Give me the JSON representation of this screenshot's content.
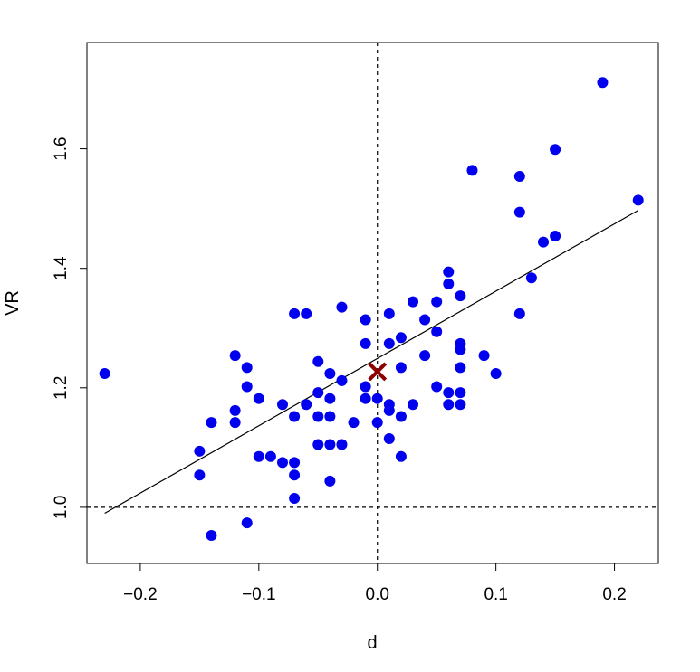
{
  "chart_data": {
    "type": "scatter",
    "title": "",
    "xlabel": "d",
    "ylabel": "VR",
    "xlim": [
      -0.245,
      0.237
    ],
    "ylim": [
      0.906,
      1.778
    ],
    "x_ticks": [
      -0.2,
      -0.1,
      0.0,
      0.1,
      0.2
    ],
    "x_tick_labels": [
      "−0.2",
      "−0.1",
      "0.0",
      "0.1",
      "0.2"
    ],
    "y_ticks": [
      1.0,
      1.2,
      1.4,
      1.6
    ],
    "y_tick_labels": [
      "1.0",
      "1.2",
      "1.4",
      "1.6"
    ],
    "grid": false,
    "point_color": "#0000ee",
    "reference_lines": {
      "vertical_dashed_x": 0.0,
      "horizontal_dashed_y": 1.0
    },
    "fit_line": {
      "from": [
        -0.23,
        0.99
      ],
      "to": [
        0.22,
        1.497
      ]
    },
    "center_marker": {
      "symbol": "x",
      "x": 0.0,
      "y": 1.227,
      "color": "#8b0000"
    },
    "points": [
      [
        -0.23,
        1.224
      ],
      [
        -0.15,
        1.094
      ],
      [
        -0.15,
        1.054
      ],
      [
        -0.14,
        1.142
      ],
      [
        -0.14,
        0.953
      ],
      [
        -0.12,
        1.254
      ],
      [
        -0.12,
        1.162
      ],
      [
        -0.12,
        1.142
      ],
      [
        -0.11,
        1.234
      ],
      [
        -0.11,
        1.202
      ],
      [
        -0.11,
        0.974
      ],
      [
        -0.1,
        1.182
      ],
      [
        -0.1,
        1.085
      ],
      [
        -0.09,
        1.085
      ],
      [
        -0.08,
        1.172
      ],
      [
        -0.08,
        1.075
      ],
      [
        -0.07,
        1.324
      ],
      [
        -0.07,
        1.152
      ],
      [
        -0.07,
        1.075
      ],
      [
        -0.07,
        1.054
      ],
      [
        -0.07,
        1.015
      ],
      [
        -0.06,
        1.324
      ],
      [
        -0.06,
        1.172
      ],
      [
        -0.05,
        1.244
      ],
      [
        -0.05,
        1.192
      ],
      [
        -0.05,
        1.152
      ],
      [
        -0.05,
        1.105
      ],
      [
        -0.04,
        1.224
      ],
      [
        -0.04,
        1.182
      ],
      [
        -0.04,
        1.152
      ],
      [
        -0.04,
        1.105
      ],
      [
        -0.04,
        1.044
      ],
      [
        -0.03,
        1.335
      ],
      [
        -0.03,
        1.212
      ],
      [
        -0.03,
        1.105
      ],
      [
        -0.02,
        1.142
      ],
      [
        -0.01,
        1.314
      ],
      [
        -0.01,
        1.274
      ],
      [
        -0.01,
        1.202
      ],
      [
        -0.01,
        1.182
      ],
      [
        0.0,
        1.182
      ],
      [
        0.0,
        1.142
      ],
      [
        0.01,
        1.324
      ],
      [
        0.01,
        1.274
      ],
      [
        0.01,
        1.172
      ],
      [
        0.01,
        1.162
      ],
      [
        0.01,
        1.115
      ],
      [
        0.02,
        1.284
      ],
      [
        0.02,
        1.234
      ],
      [
        0.02,
        1.152
      ],
      [
        0.02,
        1.085
      ],
      [
        0.03,
        1.344
      ],
      [
        0.03,
        1.172
      ],
      [
        0.04,
        1.314
      ],
      [
        0.04,
        1.254
      ],
      [
        0.05,
        1.344
      ],
      [
        0.05,
        1.294
      ],
      [
        0.05,
        1.202
      ],
      [
        0.06,
        1.394
      ],
      [
        0.06,
        1.374
      ],
      [
        0.06,
        1.192
      ],
      [
        0.06,
        1.172
      ],
      [
        0.07,
        1.354
      ],
      [
        0.07,
        1.274
      ],
      [
        0.07,
        1.264
      ],
      [
        0.07,
        1.234
      ],
      [
        0.07,
        1.192
      ],
      [
        0.07,
        1.172
      ],
      [
        0.08,
        1.564
      ],
      [
        0.09,
        1.254
      ],
      [
        0.1,
        1.224
      ],
      [
        0.12,
        1.554
      ],
      [
        0.12,
        1.494
      ],
      [
        0.12,
        1.324
      ],
      [
        0.13,
        1.384
      ],
      [
        0.14,
        1.444
      ],
      [
        0.15,
        1.599
      ],
      [
        0.15,
        1.454
      ],
      [
        0.19,
        1.711
      ],
      [
        0.22,
        1.514
      ]
    ]
  }
}
